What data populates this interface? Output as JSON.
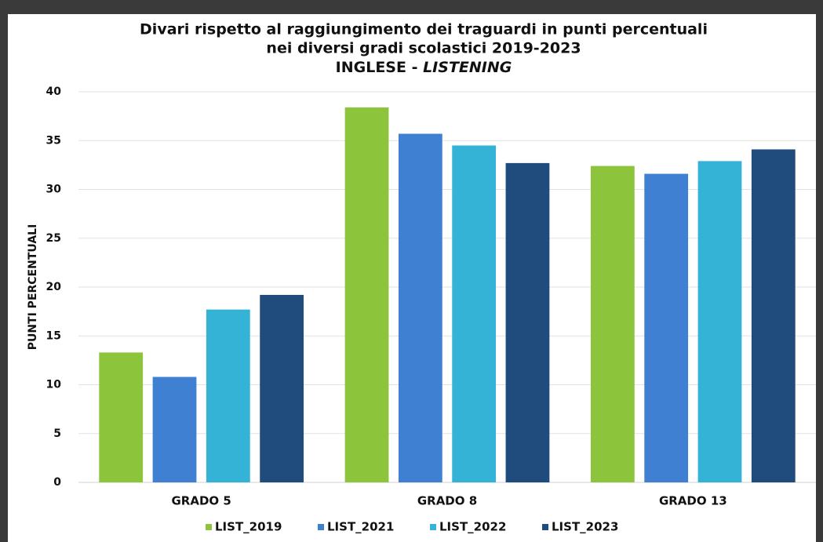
{
  "chart_data": {
    "type": "bar",
    "title": [
      "Divari rispetto al raggiungimento dei traguardi in punti percentuali",
      "nei diversi gradi scolastici 2019-2023"
    ],
    "subtitle": [
      "INGLESE - ",
      "LISTENING"
    ],
    "y_label": "PUNTI PERCENTUALI",
    "categories": [
      "GRADO 5",
      "GRADO 8",
      "GRADO 13"
    ],
    "series": [
      {
        "name": "LIST_2019",
        "color": "#8cc43c",
        "values": [
          13.3,
          38.4,
          32.4
        ]
      },
      {
        "name": "LIST_2021",
        "color": "#3f80d2",
        "values": [
          10.8,
          35.7,
          31.6
        ]
      },
      {
        "name": "LIST_2022",
        "color": "#34b3d6",
        "values": [
          17.7,
          34.5,
          32.9
        ]
      },
      {
        "name": "LIST_2023",
        "color": "#1f4c7d",
        "values": [
          19.2,
          32.7,
          34.1
        ]
      }
    ],
    "ylim": [
      0,
      40
    ],
    "yticks": [
      0,
      5,
      10,
      15,
      20,
      25,
      30,
      35,
      40
    ],
    "grid": true
  }
}
